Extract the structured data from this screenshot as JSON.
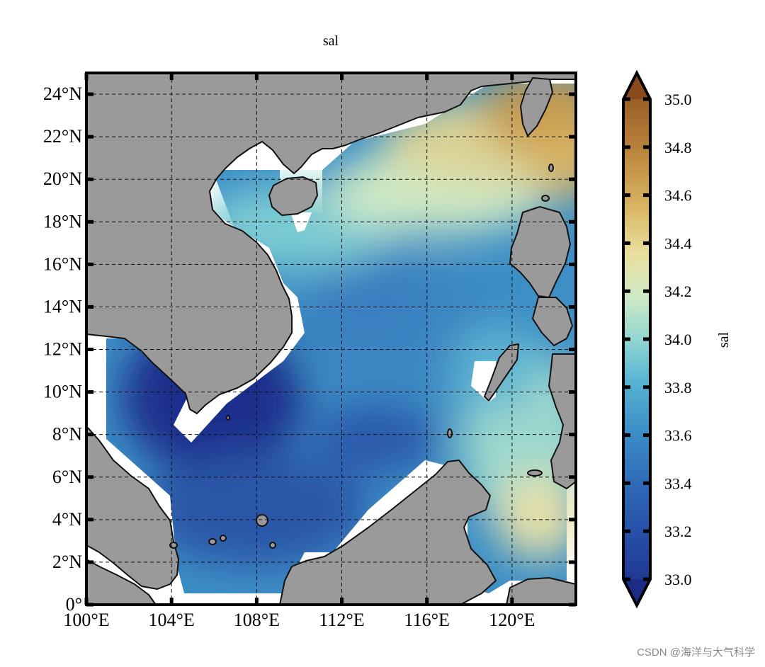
{
  "title": "sal",
  "map": {
    "lon_range": [
      100,
      123
    ],
    "lat_range": [
      0,
      25
    ],
    "lon_ticks": [
      "100°E",
      "104°E",
      "108°E",
      "112°E",
      "116°E",
      "120°E"
    ],
    "lat_ticks": [
      "0°",
      "2°N",
      "4°N",
      "6°N",
      "8°N",
      "10°N",
      "12°N",
      "14°N",
      "16°N",
      "18°N",
      "20°N",
      "22°N",
      "24°N"
    ],
    "land_color": "#9a9a9a",
    "coast_color": "#111111",
    "grid_style": "dashed"
  },
  "colorbar": {
    "label": "sal",
    "min": 33.0,
    "max": 35.0,
    "ticks": [
      "33.0",
      "33.2",
      "33.4",
      "33.6",
      "33.8",
      "34.0",
      "34.2",
      "34.4",
      "34.6",
      "34.8",
      "35.0"
    ],
    "colors": [
      "#1c2c86",
      "#2e5fb1",
      "#3d8fc6",
      "#5ab8d2",
      "#93d6d2",
      "#cfe9c4",
      "#eadf9e",
      "#d8b463",
      "#b9823a",
      "#8a4a1e"
    ],
    "extend": "both"
  },
  "watermark": "CSDN @海洋与大气科学"
}
